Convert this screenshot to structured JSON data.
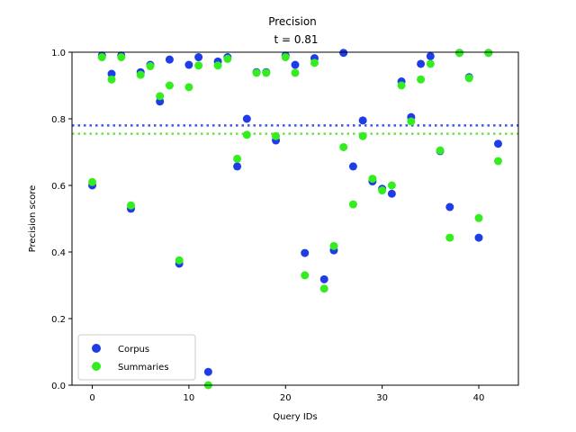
{
  "chart_data": {
    "type": "scatter",
    "title": "Precision",
    "subtitle": "t = 0.81",
    "xlabel": "Query IDs",
    "ylabel": "Precision score",
    "xlim": [
      -2.1,
      44.1
    ],
    "ylim": [
      0,
      1
    ],
    "xticks": [
      0,
      10,
      20,
      30,
      40
    ],
    "yticks": [
      0.0,
      0.2,
      0.4,
      0.6,
      0.8,
      1.0
    ],
    "grid": false,
    "legend_position": "bottom-left",
    "series": [
      {
        "name": "Corpus",
        "color": "#1f3de6",
        "x": [
          0,
          1,
          2,
          3,
          4,
          5,
          6,
          7,
          8,
          9,
          10,
          11,
          12,
          13,
          14,
          15,
          16,
          17,
          18,
          19,
          20,
          21,
          22,
          23,
          24,
          25,
          26,
          27,
          28,
          29,
          30,
          31,
          32,
          33,
          34,
          35,
          36,
          37,
          38,
          39,
          40,
          41,
          42
        ],
        "y": [
          0.6,
          0.99,
          0.935,
          0.99,
          0.53,
          0.94,
          0.962,
          0.852,
          0.978,
          0.365,
          0.962,
          0.985,
          0.04,
          0.972,
          0.985,
          0.657,
          0.8,
          0.94,
          0.94,
          0.735,
          0.99,
          0.962,
          0.397,
          0.982,
          0.318,
          0.405,
          0.998,
          0.657,
          0.795,
          0.612,
          0.59,
          0.575,
          0.912,
          0.805,
          0.965,
          0.988,
          0.703,
          0.535,
          0.998,
          0.925,
          0.443,
          0.998,
          0.725
        ]
      },
      {
        "name": "Summaries",
        "color": "#34ed1f",
        "x": [
          0,
          1,
          2,
          3,
          4,
          5,
          6,
          7,
          8,
          9,
          10,
          11,
          12,
          13,
          14,
          15,
          16,
          17,
          18,
          19,
          20,
          21,
          22,
          23,
          24,
          25,
          26,
          27,
          28,
          29,
          30,
          31,
          32,
          33,
          34,
          35,
          36,
          37,
          38,
          39,
          40,
          41,
          42
        ],
        "y": [
          0.61,
          0.985,
          0.918,
          0.985,
          0.54,
          0.932,
          0.958,
          0.868,
          0.9,
          0.375,
          0.895,
          0.96,
          0.0,
          0.96,
          0.98,
          0.68,
          0.752,
          0.938,
          0.938,
          0.748,
          0.985,
          0.938,
          0.33,
          0.968,
          0.29,
          0.418,
          0.715,
          0.543,
          0.748,
          0.62,
          0.585,
          0.6,
          0.9,
          0.792,
          0.918,
          0.965,
          0.705,
          0.443,
          0.998,
          0.922,
          0.502,
          0.998,
          0.673
        ]
      }
    ],
    "reference_lines": [
      {
        "series": "Corpus",
        "axis": "y",
        "value": 0.78,
        "style": "dotted",
        "color": "#3a56e8"
      },
      {
        "series": "Summaries",
        "axis": "y",
        "value": 0.755,
        "style": "dotted",
        "color": "#6fe04a"
      }
    ]
  }
}
